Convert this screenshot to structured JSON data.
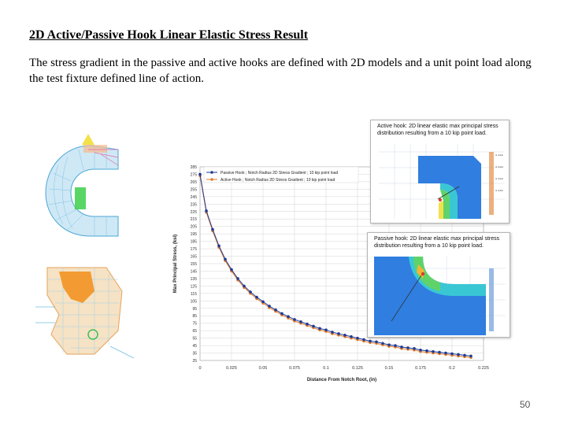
{
  "slide": {
    "title": "2D Active/Passive Hook Linear Elastic Stress Result",
    "body": "The stress gradient in the passive and active hooks are defined with 2D models and a unit point load along the test fixture defined line of action.",
    "page_number": "50"
  },
  "insets": {
    "active_caption": "Active hook: 2D linear elastic max principal stress distribution resulting from a 10 kip point load.",
    "passive_caption": "Passive hook: 2D linear elastic max principal stress distribution resulting from a 10 kip point load."
  },
  "chart_data": {
    "type": "line",
    "xlabel": "Distance From Notch Root, (in)",
    "ylabel": "Max Principal Stress, (ksi)",
    "xlim": [
      0,
      0.225
    ],
    "ylim": [
      25,
      285
    ],
    "x_ticks": [
      "0",
      "0.025",
      "0.05",
      "0.075",
      "0.1",
      "0.125",
      "0.15",
      "0.175",
      "0.2",
      "0.225"
    ],
    "y_ticks": [
      "25",
      "35",
      "45",
      "55",
      "65",
      "75",
      "85",
      "95",
      "105",
      "115",
      "125",
      "135",
      "145",
      "155",
      "165",
      "175",
      "185",
      "195",
      "205",
      "215",
      "225",
      "235",
      "245",
      "255",
      "265",
      "275",
      "285"
    ],
    "legend_position": "top",
    "grid": true,
    "series": [
      {
        "name": "Passive Hook ; Notch Radius 2D Stress Gradient ; 10 kip point load",
        "color": "#1f3a93",
        "x": [
          0,
          0.005,
          0.01,
          0.015,
          0.02,
          0.025,
          0.03,
          0.035,
          0.04,
          0.045,
          0.05,
          0.055,
          0.06,
          0.065,
          0.07,
          0.075,
          0.08,
          0.085,
          0.09,
          0.095,
          0.1,
          0.105,
          0.11,
          0.115,
          0.12,
          0.125,
          0.13,
          0.135,
          0.14,
          0.145,
          0.15,
          0.155,
          0.16,
          0.165,
          0.17,
          0.175,
          0.18,
          0.185,
          0.19,
          0.195,
          0.2,
          0.205,
          0.21,
          0.215
        ],
        "y": [
          275,
          226,
          201,
          179,
          161,
          147,
          135,
          125,
          117,
          110,
          104,
          98,
          93,
          88,
          84,
          80,
          77,
          74,
          71,
          68,
          66,
          63,
          61,
          59,
          57,
          55,
          53,
          51,
          50,
          48,
          46,
          45,
          43,
          42,
          41,
          39,
          38,
          37,
          36,
          35,
          34,
          33,
          32,
          31
        ]
      },
      {
        "name": "Active Hook ; Notch Radius 2D Stress Gradient ; 10 kip point load",
        "color": "#e07b2c",
        "x": [
          0,
          0.005,
          0.01,
          0.015,
          0.02,
          0.025,
          0.03,
          0.035,
          0.04,
          0.045,
          0.05,
          0.055,
          0.06,
          0.065,
          0.07,
          0.075,
          0.08,
          0.085,
          0.09,
          0.095,
          0.1,
          0.105,
          0.11,
          0.115,
          0.12,
          0.125,
          0.13,
          0.135,
          0.14,
          0.145,
          0.15,
          0.155,
          0.16,
          0.165,
          0.17,
          0.175,
          0.18,
          0.185,
          0.19,
          0.195,
          0.2,
          0.205,
          0.21,
          0.215
        ],
        "y": [
          273,
          224,
          199,
          177,
          159,
          145,
          133,
          123,
          115,
          108,
          102,
          96,
          91,
          86,
          82,
          78,
          75,
          72,
          69,
          66,
          64,
          61,
          59,
          57,
          55,
          53,
          51,
          49,
          48,
          46,
          44,
          43,
          41,
          40,
          39,
          37,
          36,
          35,
          34,
          33,
          32,
          31,
          30,
          29
        ]
      }
    ]
  }
}
